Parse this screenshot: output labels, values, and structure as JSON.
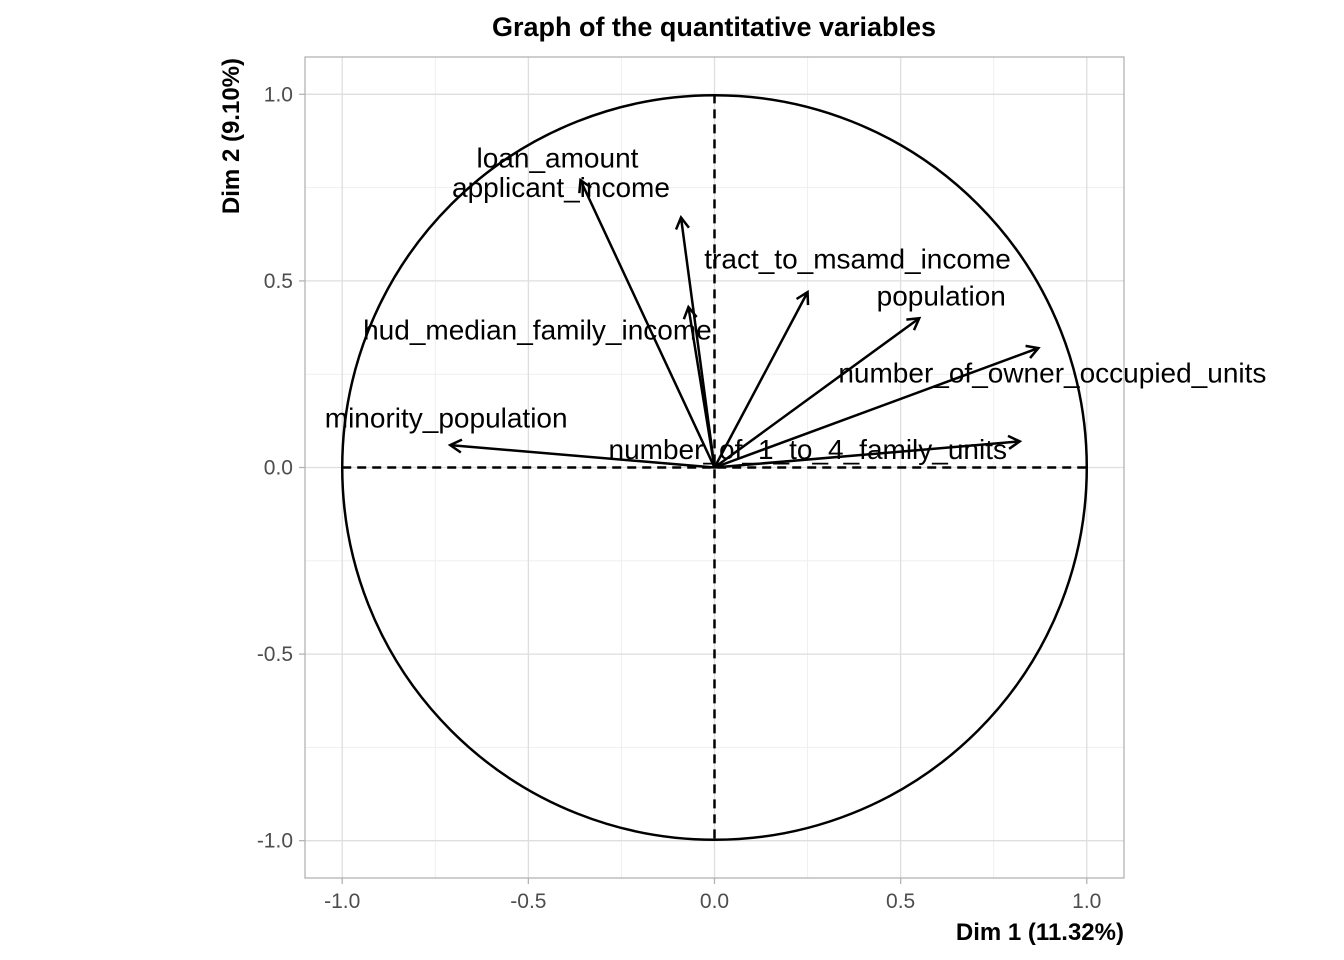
{
  "chart_data": {
    "type": "pca-variables",
    "title": "Graph of the quantitative variables",
    "xlabel": "Dim 1 (11.32%)",
    "ylabel": "Dim 2 (9.10%)",
    "xlim": [
      -1.1,
      1.1
    ],
    "ylim": [
      -1.1,
      1.1
    ],
    "x_ticks": [
      -1.0,
      -0.5,
      0.0,
      0.5,
      1.0
    ],
    "y_ticks": [
      -1.0,
      -0.5,
      0.0,
      0.5,
      1.0
    ],
    "x_tick_labels": [
      "-1.0",
      "-0.5",
      "0.0",
      "0.5",
      "1.0"
    ],
    "y_tick_labels": [
      "-1.0",
      "-0.5",
      "0.0",
      "0.5",
      "1.0"
    ],
    "grid": true,
    "correlation_circle": true,
    "variables": [
      {
        "name": "loan_amount",
        "x": -0.36,
        "y": 0.77
      },
      {
        "name": "applicant_income",
        "x": -0.09,
        "y": 0.67
      },
      {
        "name": "tract_to_msamd_income",
        "x": 0.25,
        "y": 0.47
      },
      {
        "name": "population",
        "x": 0.55,
        "y": 0.4
      },
      {
        "name": "hud_median_family_income",
        "x": -0.07,
        "y": 0.43
      },
      {
        "name": "number_of_owner_occupied_units",
        "x": 0.87,
        "y": 0.32
      },
      {
        "name": "minority_population",
        "x": -0.71,
        "y": 0.06
      },
      {
        "name": "number_of_1_to_4_family_units",
        "x": 0.82,
        "y": 0.07
      }
    ]
  }
}
